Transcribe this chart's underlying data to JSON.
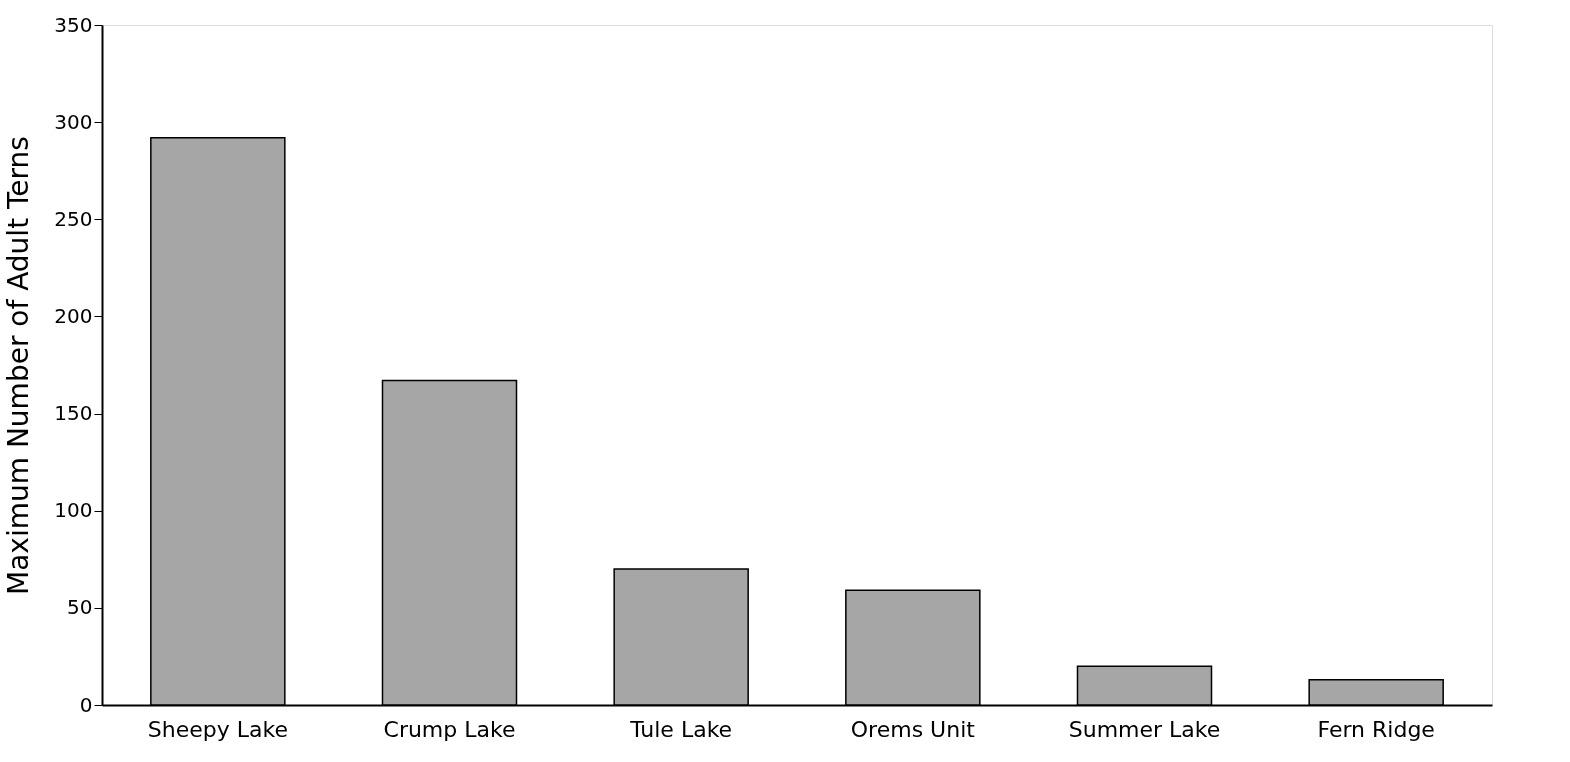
{
  "chart_data": {
    "type": "bar",
    "ylabel": "Maximum Number of Adult Terns",
    "categories": [
      "Sheepy Lake",
      "Crump Lake",
      "Tule Lake",
      "Orems Unit",
      "Summer Lake",
      "Fern Ridge"
    ],
    "values": [
      292,
      167,
      70,
      59,
      20,
      13
    ],
    "color": "#a6a6a6",
    "ylim": [
      0,
      350
    ],
    "yticks": [
      0,
      50,
      100,
      150,
      200,
      250,
      300,
      350
    ],
    "grid": false
  }
}
